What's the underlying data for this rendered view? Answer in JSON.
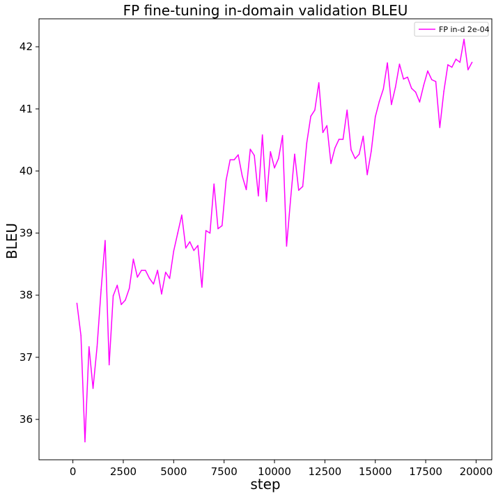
{
  "chart_data": {
    "type": "line",
    "title": "FP fine-tuning in-domain validation BLEU",
    "xlabel": "step",
    "ylabel": "BLEU",
    "xlim": [
      -1680,
      20780
    ],
    "ylim": [
      35.35,
      42.45
    ],
    "xticks": [
      0,
      2500,
      5000,
      7500,
      10000,
      12500,
      15000,
      17500,
      20000
    ],
    "yticks": [
      36,
      37,
      38,
      39,
      40,
      41,
      42
    ],
    "grid": false,
    "legend_position": "top-right",
    "series": [
      {
        "name": "FP in-d 2e-04",
        "color": "#ff00ff",
        "x": [
          200,
          400,
          600,
          800,
          1000,
          1200,
          1400,
          1600,
          1800,
          2000,
          2200,
          2400,
          2600,
          2800,
          3000,
          3200,
          3400,
          3600,
          3800,
          4000,
          4200,
          4400,
          4600,
          4800,
          5000,
          5200,
          5400,
          5600,
          5800,
          6000,
          6200,
          6400,
          6600,
          6800,
          7000,
          7200,
          7400,
          7600,
          7800,
          8000,
          8200,
          8400,
          8600,
          8800,
          9000,
          9200,
          9400,
          9600,
          9800,
          10000,
          10200,
          10400,
          10600,
          10800,
          11000,
          11200,
          11400,
          11600,
          11800,
          12000,
          12200,
          12400,
          12600,
          12800,
          13000,
          13200,
          13400,
          13600,
          13800,
          14000,
          14200,
          14400,
          14600,
          14800,
          15000,
          15200,
          15400,
          15600,
          15800,
          16000,
          16200,
          16400,
          16600,
          16800,
          17000,
          17200,
          17400,
          17600,
          17800,
          18000,
          18200,
          18400,
          18600,
          18800,
          19000,
          19200,
          19400,
          19600,
          19800
        ],
        "values": [
          37.87,
          37.35,
          35.64,
          37.17,
          36.5,
          37.17,
          38.09,
          38.88,
          36.88,
          37.99,
          38.16,
          37.85,
          37.92,
          38.11,
          38.58,
          38.29,
          38.4,
          38.4,
          38.27,
          38.18,
          38.4,
          38.02,
          38.37,
          38.27,
          38.71,
          39.0,
          39.29,
          38.76,
          38.86,
          38.72,
          38.8,
          38.13,
          39.04,
          39.0,
          39.79,
          39.07,
          39.12,
          39.85,
          40.18,
          40.18,
          40.26,
          39.92,
          39.7,
          40.35,
          40.25,
          39.6,
          40.58,
          39.51,
          40.31,
          40.05,
          40.2,
          40.57,
          38.79,
          39.55,
          40.27,
          39.69,
          39.75,
          40.45,
          40.88,
          40.98,
          41.42,
          40.62,
          40.73,
          40.12,
          40.37,
          40.51,
          40.51,
          40.98,
          40.34,
          40.2,
          40.27,
          40.56,
          39.94,
          40.32,
          40.87,
          41.12,
          41.32,
          41.74,
          41.07,
          41.35,
          41.72,
          41.48,
          41.51,
          41.33,
          41.27,
          41.11,
          41.38,
          41.61,
          41.47,
          41.44,
          40.7,
          41.28,
          41.71,
          41.67,
          41.8,
          41.75,
          42.12,
          41.63,
          41.75
        ]
      }
    ]
  }
}
